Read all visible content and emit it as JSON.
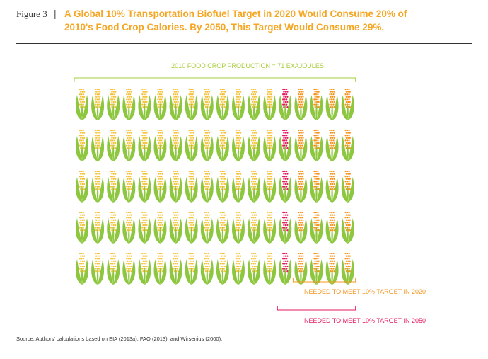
{
  "figure": {
    "label": "Figure 3",
    "separator": "|",
    "title_line1": "A Global 10% Transportation Biofuel Target in 2020 Would Consume 20% of",
    "title_line2": "2010's Food Crop Calories. By 2050, This Target Would Consume 29%."
  },
  "chart_data": {
    "type": "pictograph",
    "title": "2010 FOOD CROP PRODUCTION = 71 EXAJOULES",
    "rows": 5,
    "columns": 18,
    "counts_per_row": {
      "food_remaining": 13,
      "needed_2050_additional": 1,
      "needed_2020": 4
    },
    "colors": {
      "leaf": "#8dc63f",
      "cob_yellow": "#f5c33b",
      "cob_red": "#e5175d",
      "cob_orange": "#f7941d",
      "bracket_green": "#a6ce39",
      "bracket_orange": "#f7941d",
      "bracket_red": "#e5175d"
    },
    "annotations": {
      "target_2020": "NEEDED TO MEET 10% TARGET IN 2020",
      "target_2050": "NEEDED TO MEET 10% TARGET IN 2050"
    },
    "icon": "corn-cob-icon"
  },
  "source": "Source: Authors' calculations based on EIA (2013a), FAO (2013), and Wirsenius (2000)."
}
